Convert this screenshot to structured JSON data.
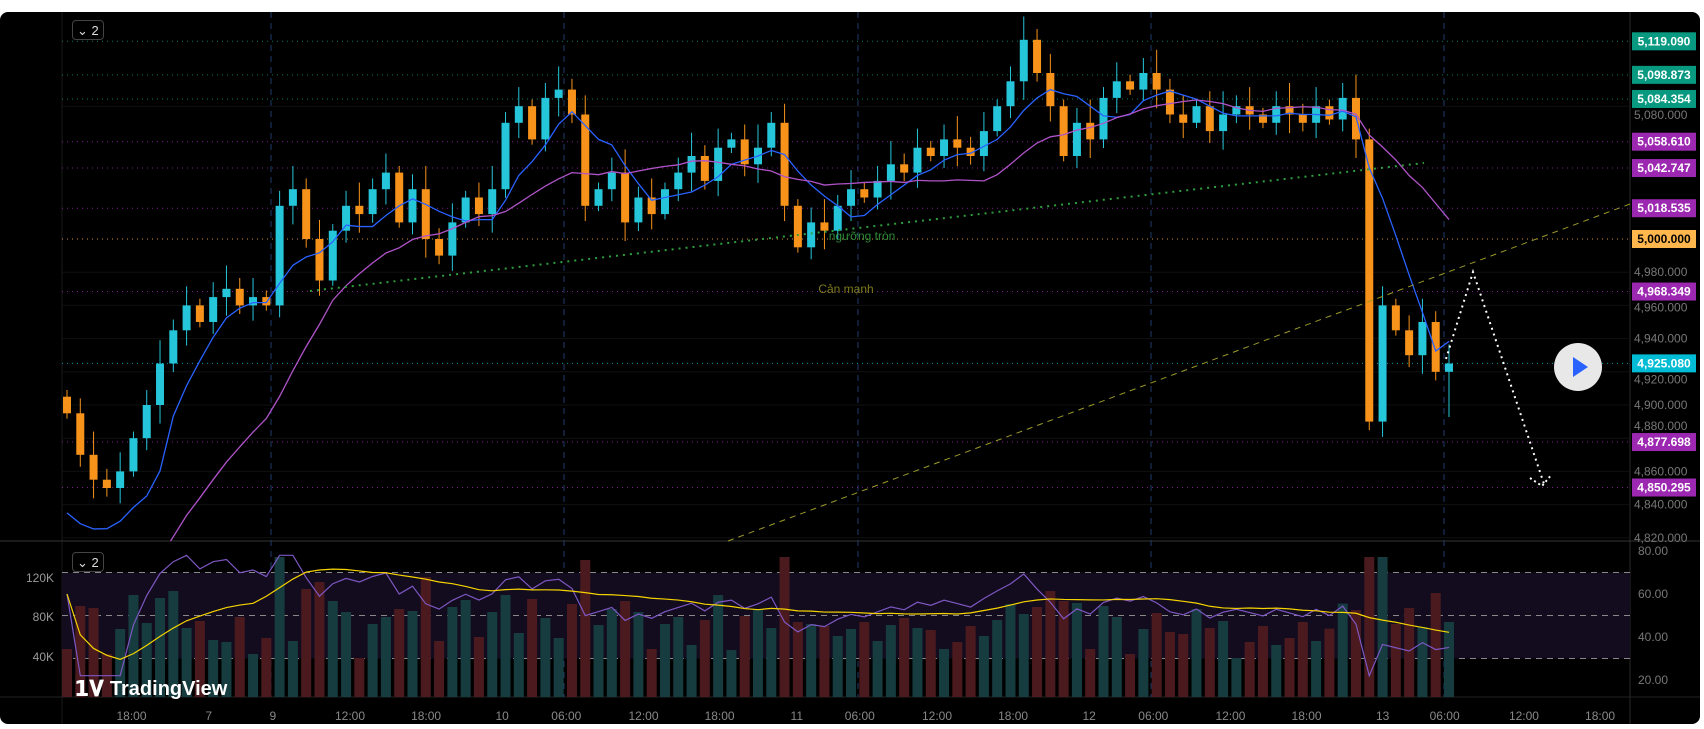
{
  "chart_data": {
    "type": "candlestick",
    "main_pane": {
      "ylim": [
        4815,
        5125
      ],
      "y_ticks": [
        "5,080.000",
        "4,980.000",
        "4,960.000",
        "4,940.000",
        "4,920.000",
        "4,900.000",
        "4,880.000",
        "4,860.000",
        "4,840.000",
        "4,820.000"
      ],
      "y_tick_values": [
        5080,
        4980,
        4960,
        4940,
        4920,
        4900,
        4880,
        4860,
        4840,
        4820
      ],
      "price_labels": [
        {
          "text": "5,119.090",
          "value": 5119.09,
          "color": "#089981"
        },
        {
          "text": "5,098.873",
          "value": 5098.873,
          "color": "#089981"
        },
        {
          "text": "5,084.354",
          "value": 5084.354,
          "color": "#089981"
        },
        {
          "text": "5,058.610",
          "value": 5058.61,
          "color": "#9c27b0"
        },
        {
          "text": "5,042.747",
          "value": 5042.747,
          "color": "#9c27b0"
        },
        {
          "text": "5,018.535",
          "value": 5018.535,
          "color": "#9c27b0"
        },
        {
          "text": "5,000.000",
          "value": 5000,
          "color": "#ffb74d"
        },
        {
          "text": "4,968.349",
          "value": 4968.349,
          "color": "#9c27b0"
        },
        {
          "text": "4,925.080",
          "value": 4925.08,
          "color": "#00bcd4"
        },
        {
          "text": "4,877.698",
          "value": 4877.698,
          "color": "#9c27b0"
        },
        {
          "text": "4,850.295",
          "value": 4850.295,
          "color": "#9c27b0"
        }
      ],
      "closes": [
        4895,
        4870,
        4855,
        4850,
        4860,
        4880,
        4900,
        4925,
        4945,
        4960,
        4950,
        4965,
        4970,
        4960,
        4965,
        4960,
        5020,
        5030,
        5000,
        4975,
        5005,
        5020,
        5015,
        5030,
        5040,
        5010,
        5030,
        5000,
        4990,
        5010,
        5025,
        5015,
        5030,
        5070,
        5080,
        5060,
        5085,
        5090,
        5075,
        5020,
        5030,
        5040,
        5010,
        5025,
        5015,
        5030,
        5040,
        5050,
        5035,
        5055,
        5060,
        5045,
        5055,
        5070,
        5020,
        4995,
        5010,
        5005,
        5020,
        5030,
        5025,
        5035,
        5045,
        5040,
        5055,
        5050,
        5060,
        5055,
        5050,
        5065,
        5080,
        5095,
        5120,
        5100,
        5080,
        5050,
        5070,
        5060,
        5085,
        5095,
        5090,
        5100,
        5090,
        5075,
        5070,
        5080,
        5065,
        5075,
        5080,
        5075,
        5070,
        5080,
        5075,
        5070,
        5080,
        5072,
        5085,
        5060,
        4890,
        4960,
        4945,
        4930,
        4950,
        4920,
        4925
      ],
      "annotations": {
        "round_level": "ngưỡng tròn",
        "strong_resistance": "Cản mạnh"
      },
      "legend_toggle": "2"
    },
    "indicator_pane": {
      "legend_toggle": "2",
      "left_ticks": [
        "120K",
        "80K",
        "40K"
      ],
      "right_ticks": [
        "80.00",
        "60.00",
        "40.00",
        "20.00"
      ],
      "bands": [
        70,
        50,
        30
      ]
    },
    "x_ticks": [
      "18:00",
      "7",
      "9",
      "12:00",
      "18:00",
      "10",
      "06:00",
      "12:00",
      "18:00",
      "11",
      "06:00",
      "12:00",
      "18:00",
      "12",
      "06:00",
      "12:00",
      "18:00",
      "13",
      "06:00",
      "12:00",
      "18:00"
    ],
    "colors": {
      "up": "#26c6da",
      "down": "#f7931a",
      "ma_fast": "#2962ff",
      "ma_slow": "#b053c9",
      "rsi": "#7e57c2",
      "rsi_ma": "#f5d300"
    }
  },
  "branding": {
    "logo": "TradingView"
  }
}
